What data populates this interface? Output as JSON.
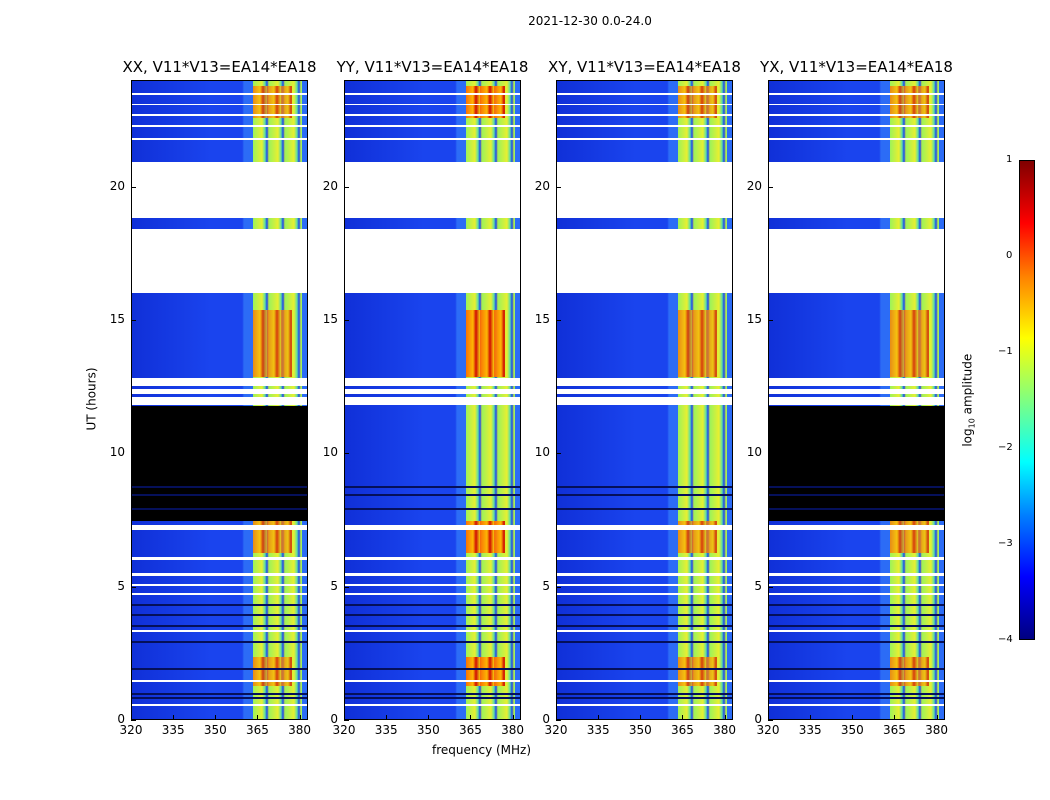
{
  "figure_title": "2021-12-30 0.0-24.0",
  "chart_data": {
    "type": "heatmap",
    "description_of_axes": "dynamic spectrum panels",
    "ylabel": "UT (hours)",
    "xlabel": "frequency (MHz)",
    "ylim": [
      0,
      24
    ],
    "xlim": [
      320,
      383
    ],
    "y_ticks": [
      0,
      5,
      10,
      15,
      20
    ],
    "x_ticks": [
      320,
      335,
      350,
      365,
      380
    ],
    "panels": [
      {
        "title": "XX, V11*V13=EA14*EA18",
        "flagged_black_hours": [
          [
            7.5,
            11.8
          ]
        ]
      },
      {
        "title": "YY, V11*V13=EA14*EA18",
        "flagged_black_hours": []
      },
      {
        "title": "XY, V11*V13=EA14*EA18",
        "flagged_black_hours": []
      },
      {
        "title": "YX, V11*V13=EA14*EA18",
        "flagged_black_hours": [
          [
            7.5,
            11.8
          ]
        ]
      }
    ],
    "missing_data_hours": [
      [
        18.8,
        20.9
      ],
      [
        16.1,
        18.4
      ]
    ],
    "colorbar": {
      "label": "log10 amplitude",
      "range": [
        -4,
        1
      ],
      "ticks": [
        1,
        0,
        -1,
        -2,
        -3,
        -4
      ]
    }
  }
}
